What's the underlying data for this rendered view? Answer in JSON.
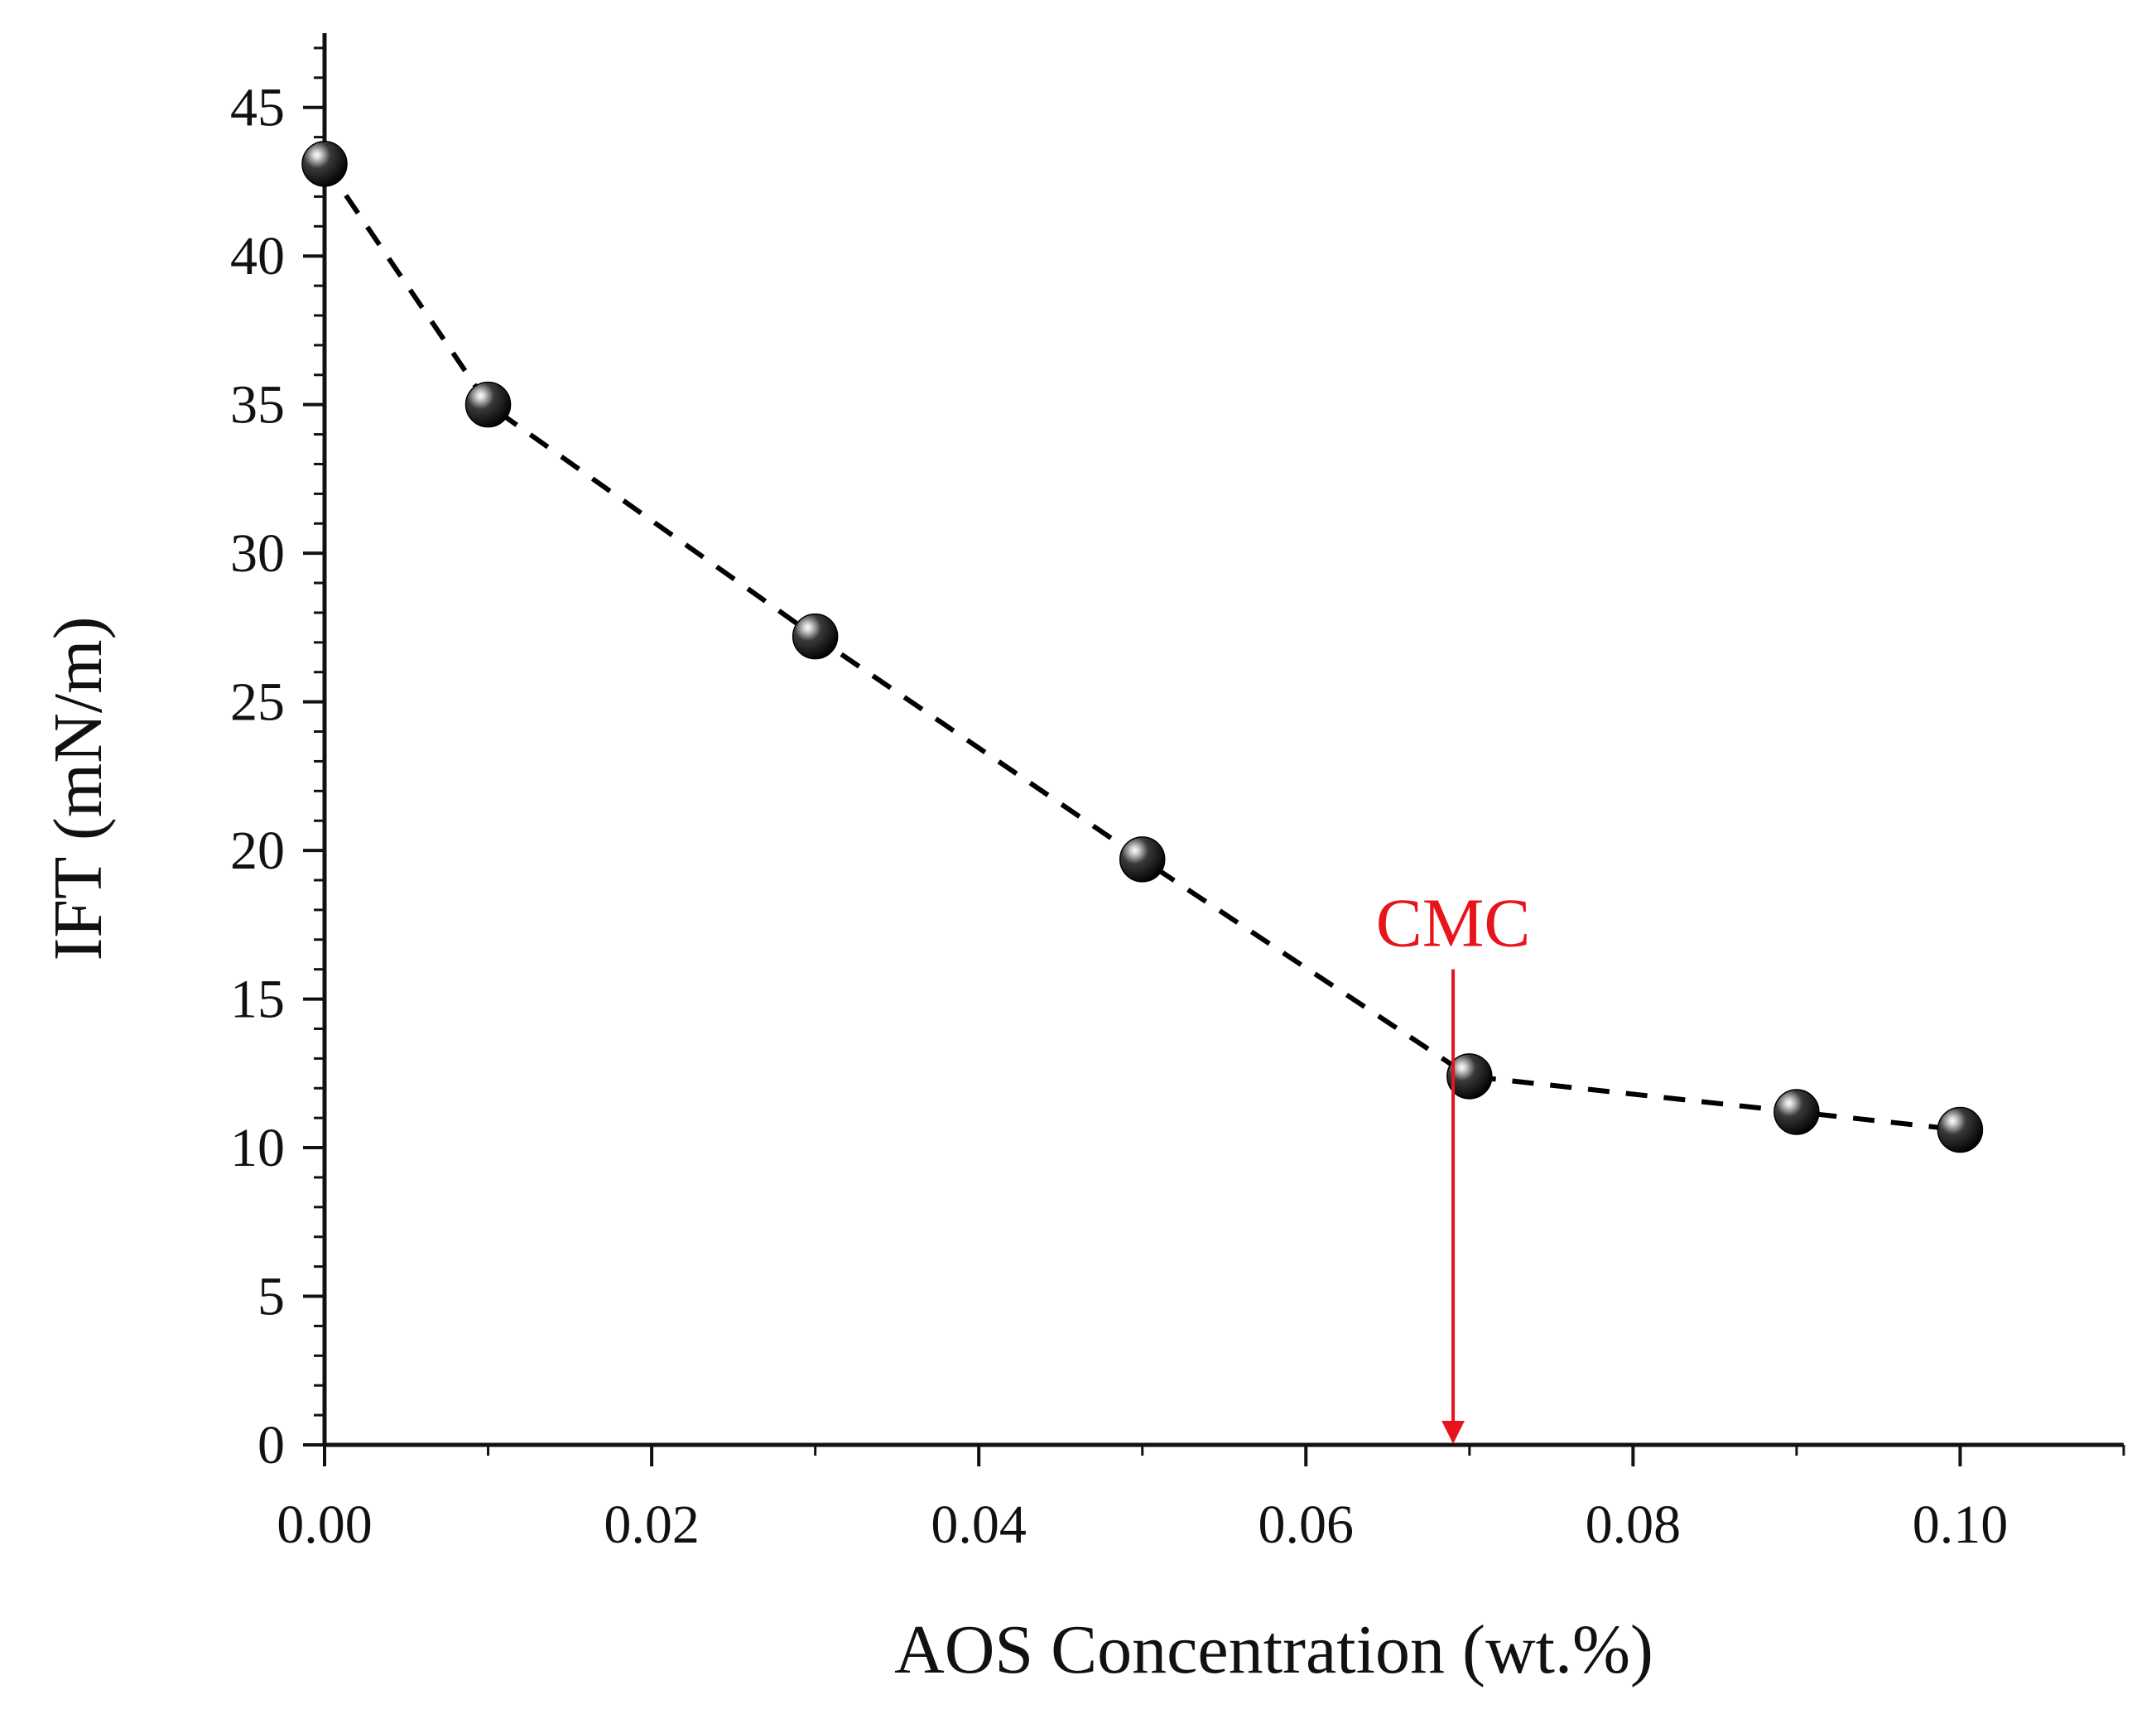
{
  "chart_data": {
    "type": "scatter",
    "title": "",
    "xlabel": "AOS Concentration (wt.%)",
    "ylabel": "IFT (mN/m)",
    "xlim": [
      0,
      0.11
    ],
    "ylim": [
      0,
      47.5
    ],
    "xticks": [
      "0.00",
      "0.02",
      "0.04",
      "0.06",
      "0.08",
      "0.10"
    ],
    "xtick_values": [
      0,
      0.02,
      0.04,
      0.06,
      0.08,
      0.1
    ],
    "yticks": [
      "0",
      "5",
      "10",
      "15",
      "20",
      "25",
      "30",
      "35",
      "40",
      "45"
    ],
    "ytick_values": [
      0,
      5,
      10,
      15,
      20,
      25,
      30,
      35,
      40,
      45
    ],
    "series": [
      {
        "name": "IFT",
        "line_style": "dashed",
        "marker": "sphere",
        "points": [
          {
            "x": 0.0,
            "y": 43.1
          },
          {
            "x": 0.01,
            "y": 35.0
          },
          {
            "x": 0.03,
            "y": 27.2
          },
          {
            "x": 0.05,
            "y": 19.7
          },
          {
            "x": 0.07,
            "y": 12.4
          },
          {
            "x": 0.09,
            "y": 11.2
          },
          {
            "x": 0.1,
            "y": 10.6
          }
        ]
      }
    ],
    "annotations": [
      {
        "text": "CMC",
        "color": "#e8141c",
        "arrow_x": 0.069,
        "arrow_y_from": 16.0,
        "arrow_y_to": 0
      }
    ]
  }
}
